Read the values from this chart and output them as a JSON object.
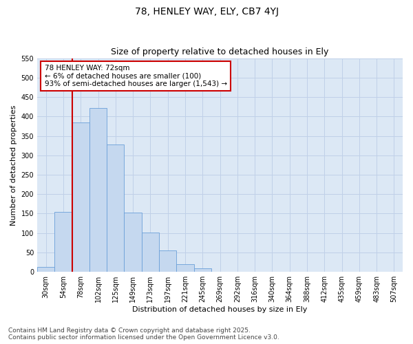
{
  "title1": "78, HENLEY WAY, ELY, CB7 4YJ",
  "title2": "Size of property relative to detached houses in Ely",
  "xlabel": "Distribution of detached houses by size in Ely",
  "ylabel": "Number of detached properties",
  "bar_labels": [
    "30sqm",
    "54sqm",
    "78sqm",
    "102sqm",
    "125sqm",
    "149sqm",
    "173sqm",
    "197sqm",
    "221sqm",
    "245sqm",
    "269sqm",
    "292sqm",
    "316sqm",
    "340sqm",
    "364sqm",
    "388sqm",
    "412sqm",
    "435sqm",
    "459sqm",
    "483sqm",
    "507sqm"
  ],
  "bar_values": [
    13,
    155,
    385,
    422,
    328,
    153,
    102,
    55,
    20,
    9,
    0,
    0,
    0,
    0,
    0,
    0,
    0,
    0,
    0,
    0,
    0
  ],
  "bar_color": "#c5d8ef",
  "bar_edge_color": "#6a9fd8",
  "vline_x": 1.5,
  "vline_color": "#cc0000",
  "annotation_text": "78 HENLEY WAY: 72sqm\n← 6% of detached houses are smaller (100)\n93% of semi-detached houses are larger (1,543) →",
  "annotation_box_color": "#cc0000",
  "ylim": [
    0,
    550
  ],
  "yticks": [
    0,
    50,
    100,
    150,
    200,
    250,
    300,
    350,
    400,
    450,
    500,
    550
  ],
  "grid_color": "#c0d0e8",
  "plot_bg_color": "#dce8f5",
  "fig_bg_color": "#ffffff",
  "footnote": "Contains HM Land Registry data © Crown copyright and database right 2025.\nContains public sector information licensed under the Open Government Licence v3.0.",
  "title1_fontsize": 10,
  "title2_fontsize": 9,
  "axis_label_fontsize": 8,
  "tick_fontsize": 7,
  "annotation_fontsize": 7.5,
  "footnote_fontsize": 6.5
}
